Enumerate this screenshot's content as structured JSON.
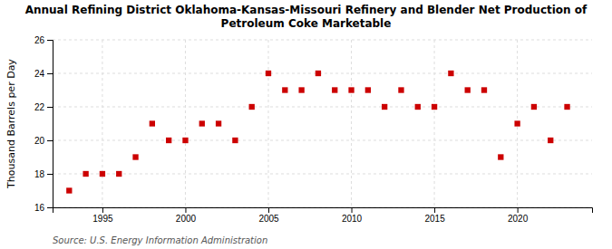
{
  "chart_data": {
    "type": "scatter",
    "title": "Annual Refining District Oklahoma-Kansas-Missouri Refinery and Blender Net Production of\nPetroleum Coke Marketable",
    "ylabel": "Thousand Barrels per Day",
    "annotations": [
      "Source: U.S. Energy Information Administration"
    ],
    "x": [
      1993,
      1994,
      1995,
      1996,
      1997,
      1998,
      1999,
      2000,
      2001,
      2002,
      2003,
      2004,
      2005,
      2006,
      2007,
      2008,
      2009,
      2010,
      2011,
      2012,
      2013,
      2014,
      2015,
      2016,
      2017,
      2018,
      2019,
      2020,
      2021,
      2022,
      2023
    ],
    "values": [
      17,
      18,
      18,
      18,
      19,
      21,
      20,
      20,
      21,
      21,
      20,
      22,
      24,
      23,
      23,
      24,
      23,
      23,
      23,
      22,
      23,
      22,
      22,
      24,
      23,
      23,
      19,
      21,
      22,
      20,
      22
    ],
    "color": "#cc0000",
    "marker": "square",
    "xlim": [
      1992.0,
      2024.5
    ],
    "xticks": [
      1995,
      2000,
      2005,
      2010,
      2015,
      2020
    ],
    "ylim": [
      16,
      26
    ],
    "yticks": [
      16,
      18,
      20,
      22,
      24,
      26
    ],
    "grid": true
  }
}
